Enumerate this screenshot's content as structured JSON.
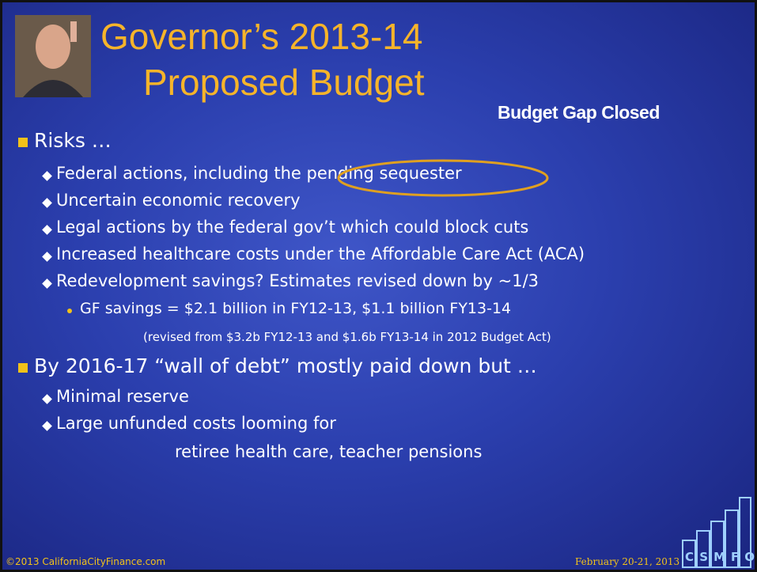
{
  "header": {
    "title_line1": "Governor’s 2013-14",
    "title_line2": "Proposed Budget",
    "subtitle": "Budget Gap Closed"
  },
  "bullets": [
    {
      "text": "Risks …",
      "items": [
        {
          "text": "Federal actions, including the pending sequester"
        },
        {
          "text": "Uncertain economic recovery"
        },
        {
          "text": "Legal actions by the federal gov’t which could block cuts"
        },
        {
          "text": "Increased healthcare costs under the Affordable Care Act (ACA)"
        },
        {
          "text": "Redevelopment savings? Estimates revised down by ~1/3",
          "items": [
            {
              "text": "GF savings = $2.1 billion in FY12-13,  $1.1 billion FY13-14",
              "note": "(revised from $3.2b FY12-13 and $1.6b FY13-14 in 2012 Budget Act)"
            }
          ]
        }
      ]
    },
    {
      "text": "By 2016-17 “wall of debt” mostly paid down but …",
      "items": [
        {
          "text": "Minimal reserve"
        },
        {
          "text": "Large unfunded costs looming for",
          "continuation": "retiree health care, teacher pensions"
        }
      ]
    }
  ],
  "footer": {
    "left": "©2013 CaliforniaCityFinance.com",
    "date": "February 20-21, 2013",
    "logo": "CSMFO"
  }
}
